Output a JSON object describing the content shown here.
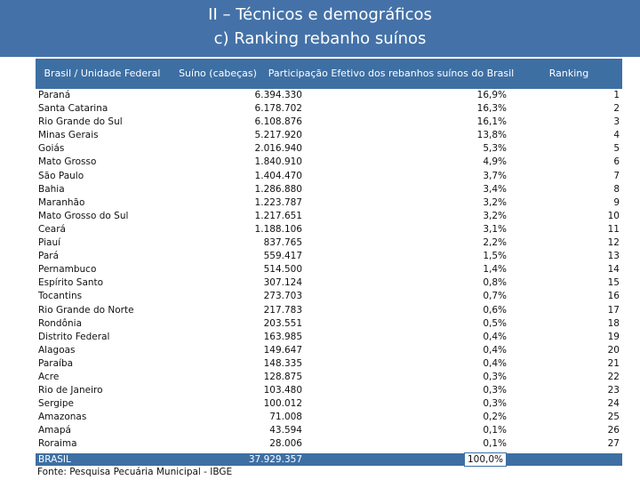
{
  "header": {
    "title": "II – Técnicos e demográficos",
    "subtitle": "c) Ranking rebanho suínos"
  },
  "table": {
    "columns": {
      "state": "Brasil / Unidade Federal",
      "suino": "Suíno (cabeças)",
      "participation": "Participação Efetivo dos rebanhos suínos do Brasil",
      "ranking": "Ranking"
    },
    "rows": [
      {
        "state": "Paraná",
        "suino": "6.394.330",
        "participation": "16,9%",
        "ranking": "1"
      },
      {
        "state": "Santa Catarina",
        "suino": "6.178.702",
        "participation": "16,3%",
        "ranking": "2"
      },
      {
        "state": "Rio Grande do Sul",
        "suino": "6.108.876",
        "participation": "16,1%",
        "ranking": "3"
      },
      {
        "state": "Minas Gerais",
        "suino": "5.217.920",
        "participation": "13,8%",
        "ranking": "4"
      },
      {
        "state": "Goiás",
        "suino": "2.016.940",
        "participation": "5,3%",
        "ranking": "5"
      },
      {
        "state": "Mato Grosso",
        "suino": "1.840.910",
        "participation": "4,9%",
        "ranking": "6"
      },
      {
        "state": "São Paulo",
        "suino": "1.404.470",
        "participation": "3,7%",
        "ranking": "7"
      },
      {
        "state": "Bahia",
        "suino": "1.286.880",
        "participation": "3,4%",
        "ranking": "8"
      },
      {
        "state": "Maranhão",
        "suino": "1.223.787",
        "participation": "3,2%",
        "ranking": "9"
      },
      {
        "state": "Mato Grosso do Sul",
        "suino": "1.217.651",
        "participation": "3,2%",
        "ranking": "10"
      },
      {
        "state": "Ceará",
        "suino": "1.188.106",
        "participation": "3,1%",
        "ranking": "11"
      },
      {
        "state": "Piauí",
        "suino": "837.765",
        "participation": "2,2%",
        "ranking": "12"
      },
      {
        "state": "Pará",
        "suino": "559.417",
        "participation": "1,5%",
        "ranking": "13"
      },
      {
        "state": "Pernambuco",
        "suino": "514.500",
        "participation": "1,4%",
        "ranking": "14"
      },
      {
        "state": "Espírito Santo",
        "suino": "307.124",
        "participation": "0,8%",
        "ranking": "15"
      },
      {
        "state": "Tocantins",
        "suino": "273.703",
        "participation": "0,7%",
        "ranking": "16"
      },
      {
        "state": "Rio Grande do Norte",
        "suino": "217.783",
        "participation": "0,6%",
        "ranking": "17"
      },
      {
        "state": "Rondônia",
        "suino": "203.551",
        "participation": "0,5%",
        "ranking": "18"
      },
      {
        "state": "Distrito Federal",
        "suino": "163.985",
        "participation": "0,4%",
        "ranking": "19"
      },
      {
        "state": "Alagoas",
        "suino": "149.647",
        "participation": "0,4%",
        "ranking": "20"
      },
      {
        "state": "Paraíba",
        "suino": "148.335",
        "participation": "0,4%",
        "ranking": "21"
      },
      {
        "state": "Acre",
        "suino": "128.875",
        "participation": "0,3%",
        "ranking": "22"
      },
      {
        "state": "Rio de Janeiro",
        "suino": "103.480",
        "participation": "0,3%",
        "ranking": "23"
      },
      {
        "state": "Sergipe",
        "suino": "100.012",
        "participation": "0,3%",
        "ranking": "24"
      },
      {
        "state": "Amazonas",
        "suino": "71.008",
        "participation": "0,2%",
        "ranking": "25"
      },
      {
        "state": "Amapá",
        "suino": "43.594",
        "participation": "0,1%",
        "ranking": "26"
      },
      {
        "state": "Roraima",
        "suino": "28.006",
        "participation": "0,1%",
        "ranking": "27"
      }
    ],
    "total": {
      "state": "BRASIL",
      "suino": "37.929.357",
      "participation": "100,0%"
    }
  },
  "source": "Fonte: Pesquisa Pecuária Municipal - IBGE",
  "colors": {
    "header_bg": "#4472a8",
    "table_header_bg": "#3e6fa3"
  }
}
